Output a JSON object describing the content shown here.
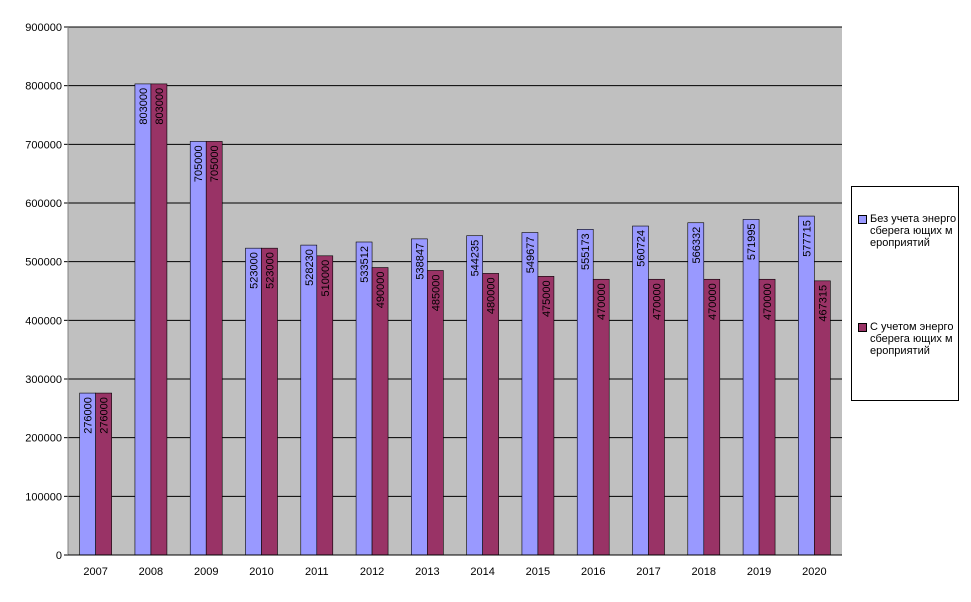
{
  "chart_data": {
    "type": "bar",
    "categories": [
      "2007",
      "2008",
      "2009",
      "2010",
      "2011",
      "2012",
      "2013",
      "2014",
      "2015",
      "2016",
      "2017",
      "2018",
      "2019",
      "2020"
    ],
    "series": [
      {
        "name": "Без учета энергосберега ющих мероприятий",
        "color": "#9999ff",
        "values": [
          276000,
          803000,
          705000,
          523000,
          528230,
          533512,
          538847,
          544235,
          549677,
          555173,
          560724,
          566332,
          571995,
          577715
        ]
      },
      {
        "name": "С учетом энергосберега ющих мероприятий",
        "color": "#993366",
        "values": [
          276000,
          803000,
          705000,
          523000,
          510000,
          490000,
          485000,
          480000,
          475000,
          470000,
          470000,
          470000,
          470000,
          467315
        ]
      }
    ],
    "ylim": [
      0,
      900000
    ],
    "yticks": [
      "0",
      "100000",
      "200000",
      "300000",
      "400000",
      "500000",
      "600000",
      "700000",
      "800000",
      "900000"
    ],
    "grid": true,
    "legend": "right",
    "plot_background": "#c0c0c0"
  }
}
